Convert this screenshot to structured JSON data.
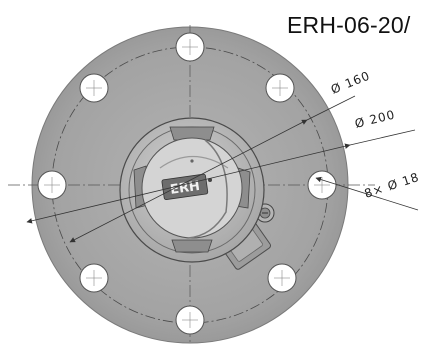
{
  "title": "ERH-06-20/",
  "dimensions": {
    "pcd": "Ø 160",
    "outer_diameter": "Ø 200",
    "holes": "8× Ø 18"
  },
  "logo": "ERH",
  "colors": {
    "flange": "#a3a3a3",
    "housing": "#b9b9b9",
    "line": "#333333",
    "background": "#ffffff"
  }
}
